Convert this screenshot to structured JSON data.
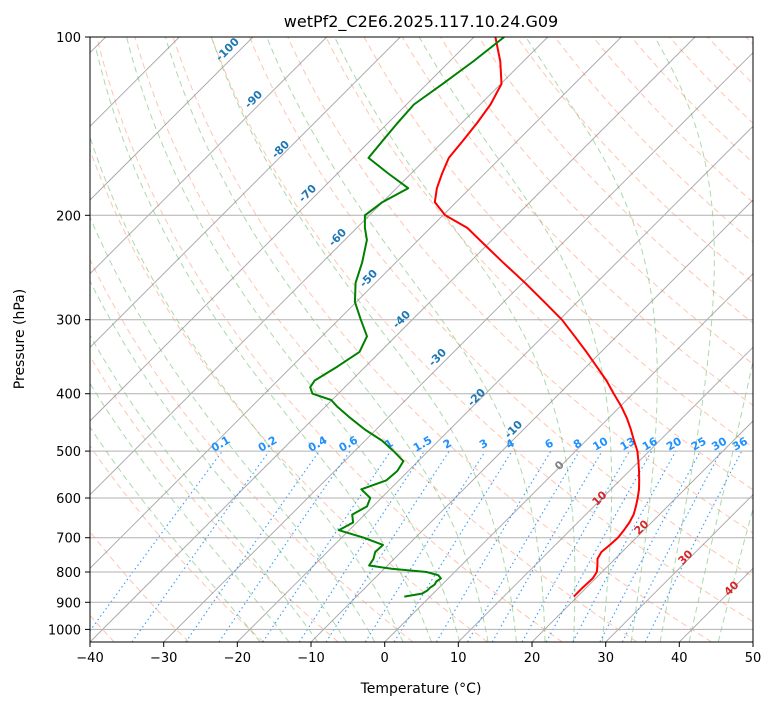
{
  "chart_data": {
    "type": "line",
    "title": "wetPf2_C2E6.2025.117.10.24.G09",
    "xlabel": "Temperature (°C)",
    "ylabel": "Pressure (hPa)",
    "xlim": [
      -40,
      50
    ],
    "ylim": [
      1050,
      100
    ],
    "y_scale": "log",
    "grid": true,
    "x_ticks": [
      "−40",
      "−30",
      "−20",
      "−10",
      "0",
      "10",
      "20",
      "30",
      "40",
      "50"
    ],
    "y_ticks": [
      "100",
      "200",
      "300",
      "400",
      "500",
      "600",
      "700",
      "800",
      "900",
      "1000"
    ],
    "colors": {
      "temperature": "#ff0000",
      "dewpoint": "#008000",
      "dry_adiabat": "#ff7f50",
      "moist_adiabat": "#2ca02c",
      "mixing_ratio": "#1e90ff",
      "isotherm": "#808080",
      "moist_label": "#1f77b4",
      "dry_label": "#d62728"
    },
    "series": [
      {
        "key": "temperature",
        "p": [
          880,
          850,
          820,
          800,
          780,
          760,
          740,
          720,
          700,
          680,
          660,
          640,
          620,
          600,
          580,
          560,
          540,
          520,
          500,
          480,
          460,
          440,
          420,
          400,
          380,
          360,
          340,
          320,
          300,
          280,
          260,
          240,
          220,
          210,
          200,
          190,
          180,
          170,
          160,
          150,
          140,
          130,
          120,
          110,
          100
        ],
        "t": [
          19.5,
          19.5,
          19.6,
          19.3,
          18.5,
          17.6,
          17.2,
          17.4,
          17.5,
          17.3,
          17.0,
          16.5,
          15.7,
          14.8,
          13.8,
          12.6,
          11.3,
          9.9,
          8.4,
          6.5,
          4.6,
          2.5,
          0.1,
          -2.6,
          -5.4,
          -8.6,
          -12.0,
          -15.7,
          -19.7,
          -24.5,
          -29.7,
          -35.5,
          -41.7,
          -45.0,
          -49.7,
          -52.9,
          -54.5,
          -55.8,
          -57.0,
          -57.4,
          -57.9,
          -58.6,
          -59.9,
          -63.1,
          -67.1
        ]
      },
      {
        "key": "dewpoint",
        "p": [
          880,
          870,
          860,
          850,
          840,
          830,
          820,
          810,
          800,
          790,
          780,
          760,
          740,
          720,
          700,
          680,
          660,
          640,
          620,
          600,
          580,
          560,
          540,
          520,
          500,
          480,
          460,
          440,
          420,
          410,
          400,
          390,
          380,
          360,
          340,
          320,
          300,
          280,
          260,
          240,
          220,
          210,
          200,
          190,
          180,
          170,
          160,
          150,
          140,
          130,
          120,
          110,
          100
        ],
        "t": [
          -3.5,
          -1.5,
          -1.2,
          -1.2,
          -1.0,
          -1.2,
          -1.0,
          -1.8,
          -3.8,
          -9.0,
          -12.5,
          -12.8,
          -13.5,
          -13.4,
          -17.0,
          -21.4,
          -20.5,
          -21.7,
          -20.8,
          -21.5,
          -23.9,
          -21.7,
          -21.5,
          -22.0,
          -24.7,
          -27.7,
          -31.5,
          -35.0,
          -38.5,
          -40.1,
          -43.5,
          -44.7,
          -45.0,
          -43.8,
          -42.8,
          -43.9,
          -47.0,
          -50.2,
          -52.7,
          -54.6,
          -57.0,
          -58.9,
          -60.6,
          -60.0,
          -58.4,
          -63.1,
          -67.9,
          -68.3,
          -68.7,
          -69.0,
          -67.9,
          -66.8,
          -65.9
        ]
      }
    ],
    "moist_adiabat_labels": [
      "-100",
      "-90",
      "-80",
      "-70",
      "-60",
      "-50",
      "-40",
      "-30",
      "-20",
      "-10"
    ],
    "mixing_ratio_labels": [
      "0.1",
      "0.2",
      "0.4",
      "0.6",
      "1",
      "1.5",
      "2",
      "3",
      "4",
      "6",
      "8",
      "10",
      "13",
      "16",
      "20",
      "25",
      "30",
      "36"
    ],
    "dry_adiabat_labels": [
      "0",
      "10",
      "20",
      "30",
      "40"
    ]
  }
}
